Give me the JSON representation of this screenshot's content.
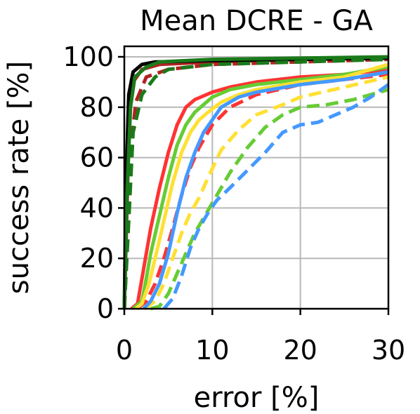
{
  "chart_data": {
    "type": "line",
    "title": "Mean DCRE - GA",
    "xlabel": "error [%]",
    "ylabel": "success rate [%]",
    "xlim": [
      0,
      30
    ],
    "ylim": [
      0,
      100
    ],
    "xticks": [
      0,
      10,
      20,
      30
    ],
    "yticks": [
      0,
      20,
      40,
      60,
      80,
      100
    ],
    "xtick_labels": [
      "0",
      "10",
      "20",
      "30"
    ],
    "ytick_labels": [
      "0",
      "20",
      "40",
      "60",
      "80",
      "100"
    ],
    "grid": true,
    "legend": "none",
    "series": [
      {
        "color": "#b22222",
        "dash": "solid",
        "x": [
          0,
          0.3,
          0.6,
          1.0,
          2.0,
          4.0,
          10,
          20,
          30
        ],
        "y": [
          0,
          40,
          80,
          90,
          95,
          97,
          98,
          99,
          99.5
        ]
      },
      {
        "color": "#b22222",
        "dash": "dashed",
        "x": [
          0,
          0.4,
          0.8,
          1.3,
          2.5,
          5,
          10,
          20,
          30
        ],
        "y": [
          0,
          30,
          65,
          82,
          92,
          95,
          97,
          98,
          99
        ]
      },
      {
        "color": "#000000",
        "dash": "solid",
        "x": [
          0,
          0.2,
          0.5,
          1.0,
          2.0,
          3.5,
          10,
          30
        ],
        "y": [
          0,
          50,
          85,
          94,
          97,
          98,
          98.5,
          99.5
        ]
      },
      {
        "color": "#1a7a1a",
        "dash": "solid",
        "x": [
          0,
          0.3,
          0.7,
          1.2,
          2.5,
          4,
          10,
          30
        ],
        "y": [
          0,
          45,
          80,
          92,
          96,
          98,
          99,
          100
        ]
      },
      {
        "color": "#1a7a1a",
        "dash": "dashed",
        "x": [
          0,
          0.5,
          1.0,
          2.0,
          3.5,
          5,
          10,
          20,
          30
        ],
        "y": [
          0,
          35,
          70,
          85,
          92,
          95,
          97,
          98,
          99
        ]
      },
      {
        "color": "#ff3333",
        "dash": "solid",
        "x": [
          0.8,
          1.5,
          2.0,
          2.5,
          3.0,
          4.0,
          5.0,
          6.0,
          7.0,
          8.0,
          10,
          12,
          15,
          20,
          25,
          30
        ],
        "y": [
          0,
          2,
          12,
          22,
          32,
          48,
          62,
          73,
          80,
          83,
          86,
          88,
          90,
          92,
          93,
          95
        ]
      },
      {
        "color": "#ff3333",
        "dash": "dashed",
        "x": [
          1.5,
          2.5,
          3.5,
          4.5,
          5.5,
          6.5,
          7.5,
          8.5,
          10,
          12,
          15,
          20,
          25,
          30
        ],
        "y": [
          0,
          3,
          10,
          20,
          32,
          45,
          56,
          64,
          73,
          80,
          85,
          89,
          91,
          93
        ]
      },
      {
        "color": "#66cc33",
        "dash": "solid",
        "x": [
          1.0,
          2.0,
          2.5,
          3.0,
          4.0,
          5.0,
          6.0,
          7.0,
          8.0,
          9.0,
          10,
          12,
          15,
          20,
          25,
          30
        ],
        "y": [
          0,
          3,
          12,
          22,
          37,
          52,
          65,
          73,
          78,
          81,
          84,
          87,
          89,
          91,
          93,
          96
        ]
      },
      {
        "color": "#66cc33",
        "dash": "dashed",
        "x": [
          3.0,
          4.0,
          5.0,
          6.0,
          7.0,
          8.0,
          9.0,
          10,
          11,
          12,
          14,
          16,
          18,
          20,
          23,
          26,
          30
        ],
        "y": [
          0,
          1,
          6,
          14,
          22,
          30,
          36,
          42,
          48,
          54,
          64,
          72,
          77,
          80,
          81,
          83,
          87
        ]
      },
      {
        "color": "#ffe033",
        "dash": "solid",
        "x": [
          1.3,
          2.0,
          2.8,
          3.5,
          4.5,
          5.5,
          6.5,
          7.5,
          8.5,
          9.5,
          11,
          13,
          15,
          20,
          25,
          30
        ],
        "y": [
          0,
          2,
          10,
          20,
          35,
          50,
          62,
          70,
          75,
          78,
          82,
          85,
          87,
          90,
          92,
          97
        ]
      },
      {
        "color": "#ffe033",
        "dash": "dashed",
        "x": [
          2.3,
          3.5,
          4.5,
          5.5,
          6.5,
          7.5,
          8.5,
          9.5,
          11,
          13,
          15,
          18,
          20,
          25,
          30
        ],
        "y": [
          0,
          3,
          10,
          20,
          30,
          38,
          44,
          52,
          63,
          71,
          77,
          81,
          84,
          88,
          92
        ]
      },
      {
        "color": "#4499ff",
        "dash": "solid",
        "x": [
          2.2,
          3.0,
          4.0,
          5.0,
          6.0,
          7.0,
          8.0,
          9.0,
          10,
          11,
          13,
          15,
          20,
          25,
          30
        ],
        "y": [
          0,
          3,
          10,
          22,
          38,
          52,
          62,
          70,
          75,
          80,
          84,
          86,
          89,
          91,
          94
        ]
      },
      {
        "color": "#4499ff",
        "dash": "dashed",
        "x": [
          4.5,
          5.5,
          6.5,
          7.5,
          8.5,
          9.5,
          10.5,
          12,
          14,
          16,
          18,
          20,
          22,
          24,
          26,
          28,
          30
        ],
        "y": [
          0,
          4,
          13,
          24,
          32,
          38,
          43,
          48,
          55,
          62,
          70,
          73,
          74,
          77,
          80,
          84,
          89
        ]
      }
    ]
  }
}
